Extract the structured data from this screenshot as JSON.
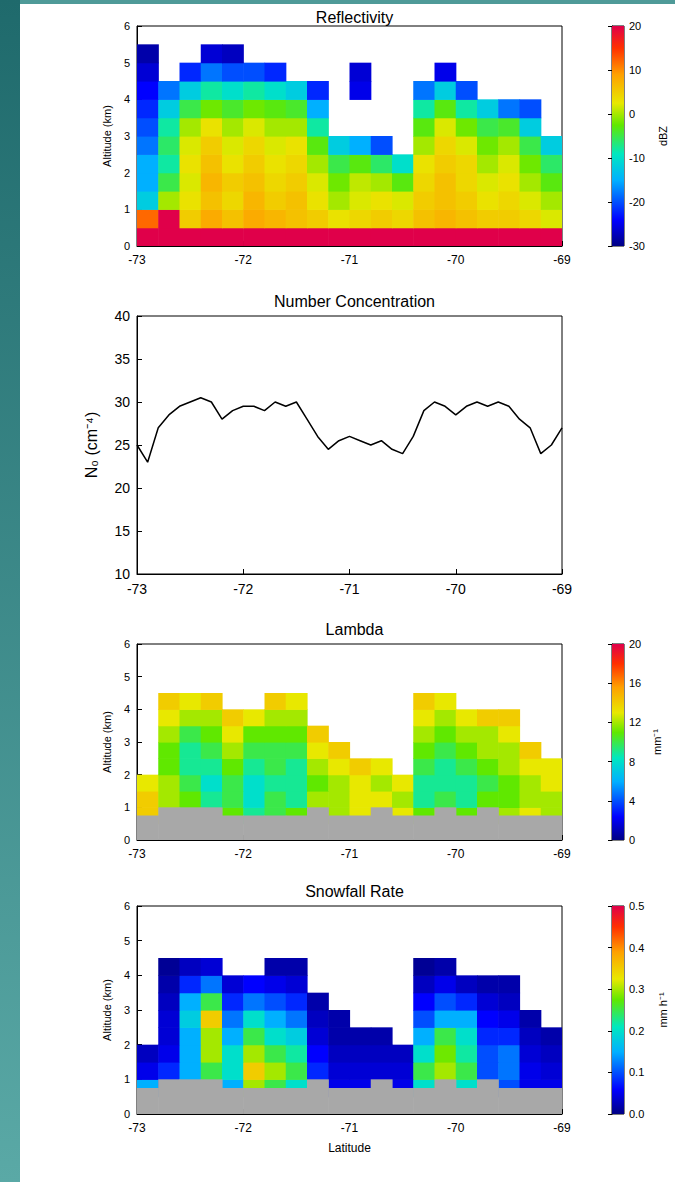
{
  "chart_data": [
    {
      "type": "heatmap",
      "title": "Reflectivity",
      "ylabel": "Altitude (km)",
      "xlim": [
        -73,
        -69
      ],
      "xticks": [
        -73,
        -72,
        -71,
        -70,
        -69
      ],
      "ylim": [
        0,
        6
      ],
      "yticks": [
        0,
        1,
        2,
        3,
        4,
        5,
        6
      ],
      "grid": false,
      "x_edges": [
        -73,
        -72.8,
        -72.6,
        -72.4,
        -72.2,
        -72,
        -71.8,
        -71.6,
        -71.4,
        -71.2,
        -71,
        -70.8,
        -70.6,
        -70.4,
        -70.2,
        -70,
        -69.8,
        -69.6,
        -69.4,
        -69.2,
        -69
      ],
      "y_edges": [
        0,
        0.5,
        1,
        1.5,
        2,
        2.5,
        3,
        3.5,
        4,
        4.5,
        5,
        5.5,
        6
      ],
      "z": [
        [
          20,
          20,
          20,
          20,
          20,
          20,
          20,
          20,
          20,
          20,
          20,
          20,
          20,
          20,
          20,
          20,
          20,
          20,
          20,
          20
        ],
        [
          12,
          20,
          5,
          8,
          6,
          8,
          7,
          6,
          5,
          3,
          4,
          5,
          4,
          6,
          7,
          6,
          5,
          5,
          4,
          2
        ],
        [
          -12,
          0,
          3,
          6,
          4,
          7,
          5,
          6,
          3,
          0,
          2,
          3,
          2,
          5,
          6,
          5,
          3,
          4,
          2,
          0
        ],
        [
          -15,
          -5,
          2,
          7,
          5,
          6,
          4,
          5,
          2,
          -2,
          1,
          0,
          -3,
          4,
          6,
          4,
          2,
          3,
          0,
          -3
        ],
        [
          -15,
          -8,
          3,
          6,
          3,
          5,
          3,
          4,
          0,
          -5,
          -3,
          -6,
          -10,
          3,
          5,
          4,
          0,
          2,
          -2,
          -6
        ],
        [
          -18,
          -6,
          2,
          5,
          2,
          4,
          2,
          3,
          -3,
          -12,
          -15,
          -20,
          null,
          0,
          4,
          2,
          -2,
          0,
          -5,
          -12
        ],
        [
          -20,
          -8,
          0,
          3,
          0,
          2,
          0,
          0,
          -8,
          null,
          null,
          null,
          null,
          -3,
          2,
          -2,
          -5,
          -4,
          -12,
          null
        ],
        [
          -22,
          -12,
          -5,
          -2,
          -4,
          -2,
          -3,
          -4,
          -15,
          null,
          null,
          null,
          null,
          -8,
          -3,
          -8,
          -12,
          -18,
          -20,
          null
        ],
        [
          -24,
          -18,
          -12,
          -8,
          -10,
          -8,
          -10,
          -12,
          -22,
          null,
          -25,
          null,
          null,
          -18,
          -12,
          -20,
          null,
          null,
          null,
          null
        ],
        [
          -26,
          null,
          -22,
          -18,
          -20,
          -20,
          -22,
          null,
          null,
          null,
          -26,
          null,
          null,
          null,
          -25,
          null,
          null,
          null,
          null,
          null
        ],
        [
          -28,
          null,
          null,
          -26,
          -27,
          null,
          null,
          null,
          null,
          null,
          null,
          null,
          null,
          null,
          null,
          null,
          null,
          null,
          null,
          null
        ],
        [
          null,
          null,
          null,
          null,
          null,
          null,
          null,
          null,
          null,
          null,
          null,
          null,
          null,
          null,
          null,
          null,
          null,
          null,
          null,
          null
        ]
      ],
      "colorbar": {
        "label": "dBZ",
        "lim": [
          -30,
          20
        ],
        "ticks": [
          -30,
          -20,
          -10,
          0,
          10,
          20
        ]
      }
    },
    {
      "type": "line",
      "title": "Number Concentration",
      "ylabel": "N₀ (cm⁻⁴)",
      "color": "#000000",
      "xlim": [
        -73,
        -69
      ],
      "xticks": [
        -73,
        -72,
        -71,
        -70,
        -69
      ],
      "ylim": [
        10,
        40
      ],
      "yticks": [
        10,
        15,
        20,
        25,
        30,
        35,
        40
      ],
      "grid": false,
      "x": [
        -73,
        -72.9,
        -72.8,
        -72.7,
        -72.6,
        -72.5,
        -72.4,
        -72.3,
        -72.2,
        -72.1,
        -72,
        -71.9,
        -71.8,
        -71.7,
        -71.6,
        -71.5,
        -71.4,
        -71.3,
        -71.2,
        -71.1,
        -71,
        -70.9,
        -70.8,
        -70.7,
        -70.6,
        -70.5,
        -70.4,
        -70.3,
        -70.2,
        -70.1,
        -70,
        -69.9,
        -69.8,
        -69.7,
        -69.6,
        -69.5,
        -69.4,
        -69.3,
        -69.2,
        -69.1,
        -69
      ],
      "values": [
        25,
        23,
        27,
        28.5,
        29.5,
        30,
        30.5,
        30,
        28,
        29,
        29.5,
        29.5,
        29,
        30,
        29.5,
        30,
        28,
        26,
        24.5,
        25.5,
        26,
        25.5,
        25,
        25.5,
        24.5,
        24,
        26,
        29,
        30,
        29.5,
        28.5,
        29.5,
        30,
        29.5,
        30,
        29.5,
        28,
        27,
        24,
        25,
        27
      ]
    },
    {
      "type": "heatmap",
      "title": "Lambda",
      "ylabel": "Altitude (km)",
      "xlim": [
        -73,
        -69
      ],
      "xticks": [
        -73,
        -72,
        -71,
        -70,
        -69
      ],
      "ylim": [
        0,
        6
      ],
      "yticks": [
        0,
        1,
        2,
        3,
        4,
        5,
        6
      ],
      "grid": false,
      "x_edges": [
        -73,
        -72.8,
        -72.6,
        -72.4,
        -72.2,
        -72,
        -71.8,
        -71.6,
        -71.4,
        -71.2,
        -71,
        -70.8,
        -70.6,
        -70.4,
        -70.2,
        -70,
        -69.8,
        -69.6,
        -69.4,
        -69.2,
        -69
      ],
      "y_edges": [
        0,
        0.5,
        1,
        1.5,
        2,
        2.5,
        3,
        3.5,
        4,
        4.5,
        5,
        5.5,
        6
      ],
      "z": [
        [
          null,
          null,
          null,
          null,
          null,
          null,
          null,
          null,
          null,
          null,
          null,
          null,
          null,
          null,
          null,
          null,
          null,
          null,
          null,
          null
        ],
        [
          14,
          13,
          12,
          10,
          11,
          9,
          10,
          11,
          13,
          12,
          13,
          14,
          13,
          11,
          12,
          11,
          12,
          12,
          13,
          12
        ],
        [
          14,
          12,
          11,
          9,
          10,
          8,
          10,
          9,
          12,
          12,
          13,
          13,
          12,
          9,
          10,
          9,
          11,
          11,
          12,
          12
        ],
        [
          13,
          12,
          10,
          8,
          10,
          8,
          9,
          9,
          11,
          12,
          13,
          12,
          13,
          9,
          9,
          9,
          10,
          11,
          12,
          13
        ],
        [
          null,
          11,
          9,
          9,
          11,
          9,
          10,
          9,
          12,
          13,
          14,
          13,
          null,
          10,
          9,
          10,
          11,
          12,
          13,
          13
        ],
        [
          null,
          11,
          9,
          10,
          12,
          10,
          10,
          10,
          13,
          14,
          null,
          null,
          null,
          11,
          10,
          11,
          12,
          12,
          14,
          null
        ],
        [
          null,
          12,
          10,
          11,
          13,
          11,
          11,
          11,
          14,
          null,
          null,
          null,
          null,
          12,
          11,
          12,
          12,
          13,
          null,
          null
        ],
        [
          null,
          13,
          12,
          12,
          14,
          13,
          12,
          12,
          null,
          null,
          null,
          null,
          null,
          13,
          12,
          13,
          14,
          14,
          null,
          null
        ],
        [
          null,
          14,
          13,
          14,
          null,
          null,
          14,
          13,
          null,
          null,
          null,
          null,
          null,
          14,
          13,
          null,
          null,
          null,
          null,
          null
        ],
        [
          null,
          null,
          null,
          null,
          null,
          null,
          null,
          null,
          null,
          null,
          null,
          null,
          null,
          null,
          null,
          null,
          null,
          null,
          null,
          null
        ],
        [
          null,
          null,
          null,
          null,
          null,
          null,
          null,
          null,
          null,
          null,
          null,
          null,
          null,
          null,
          null,
          null,
          null,
          null,
          null,
          null
        ],
        [
          null,
          null,
          null,
          null,
          null,
          null,
          null,
          null,
          null,
          null,
          null,
          null,
          null,
          null,
          null,
          null,
          null,
          null,
          null,
          null
        ]
      ],
      "mask_top": [
        0.75,
        1,
        1,
        1,
        0.75,
        0.75,
        0.75,
        0.75,
        1,
        0.75,
        0.75,
        1,
        0.75,
        0.75,
        1,
        0.75,
        1,
        0.75,
        0.75,
        0.75
      ],
      "colorbar": {
        "label": "mm⁻¹",
        "lim": [
          0,
          20
        ],
        "ticks": [
          0,
          4,
          8,
          12,
          16,
          20
        ]
      }
    },
    {
      "type": "heatmap",
      "title": "Snowfall Rate",
      "ylabel": "Altitude (km)",
      "xlabel": "Latitude",
      "xlim": [
        -73,
        -69
      ],
      "xticks": [
        -73,
        -72,
        -71,
        -70,
        -69
      ],
      "ylim": [
        0,
        6
      ],
      "yticks": [
        0,
        1,
        2,
        3,
        4,
        5,
        6
      ],
      "grid": false,
      "x_edges": [
        -73,
        -72.8,
        -72.6,
        -72.4,
        -72.2,
        -72,
        -71.8,
        -71.6,
        -71.4,
        -71.2,
        -71,
        -70.8,
        -70.6,
        -70.4,
        -70.2,
        -70,
        -69.8,
        -69.6,
        -69.4,
        -69.2,
        -69
      ],
      "y_edges": [
        0,
        0.5,
        1,
        1.5,
        2,
        2.5,
        3,
        3.5,
        4,
        4.5,
        5,
        5.5,
        6
      ],
      "z": [
        [
          null,
          null,
          null,
          null,
          null,
          null,
          null,
          null,
          null,
          null,
          null,
          null,
          null,
          null,
          null,
          null,
          null,
          null,
          null,
          null
        ],
        [
          0.15,
          0.1,
          0.12,
          0.2,
          0.15,
          0.3,
          0.25,
          0.2,
          0.1,
          0.05,
          0.05,
          0.05,
          0.05,
          0.2,
          0.25,
          0.2,
          0.1,
          0.1,
          0.05,
          0.05
        ],
        [
          0.05,
          0.08,
          0.15,
          0.25,
          0.2,
          0.35,
          0.3,
          0.25,
          0.08,
          0.04,
          0.04,
          0.04,
          0.04,
          0.25,
          0.3,
          0.25,
          0.1,
          0.12,
          0.05,
          0.04
        ],
        [
          0.03,
          0.05,
          0.15,
          0.3,
          0.2,
          0.3,
          0.25,
          0.22,
          0.06,
          0.03,
          0.03,
          0.03,
          0.03,
          0.2,
          0.28,
          0.22,
          0.1,
          0.12,
          0.04,
          0.03
        ],
        [
          null,
          0.04,
          0.15,
          0.3,
          0.15,
          0.25,
          0.2,
          0.18,
          0.04,
          0.02,
          0.02,
          0.02,
          null,
          0.15,
          0.25,
          0.2,
          0.08,
          0.08,
          0.03,
          0.02
        ],
        [
          null,
          0.04,
          0.18,
          0.35,
          0.12,
          0.2,
          0.15,
          0.12,
          0.03,
          0.02,
          null,
          null,
          null,
          0.1,
          0.15,
          0.15,
          0.06,
          0.05,
          0.02,
          null
        ],
        [
          null,
          0.03,
          0.15,
          0.25,
          0.08,
          0.12,
          0.1,
          0.08,
          0.02,
          null,
          null,
          null,
          null,
          0.06,
          0.1,
          0.08,
          0.04,
          0.03,
          null,
          null
        ],
        [
          null,
          0.02,
          0.08,
          0.12,
          0.04,
          0.06,
          0.05,
          0.04,
          null,
          null,
          null,
          null,
          null,
          0.03,
          0.05,
          0.03,
          0.02,
          0.02,
          null,
          null
        ],
        [
          null,
          0.01,
          0.03,
          0.04,
          null,
          null,
          0.02,
          0.02,
          null,
          null,
          null,
          null,
          null,
          0.01,
          0.02,
          null,
          null,
          null,
          null,
          null
        ],
        [
          null,
          null,
          null,
          null,
          null,
          null,
          null,
          null,
          null,
          null,
          null,
          null,
          null,
          null,
          null,
          null,
          null,
          null,
          null,
          null
        ],
        [
          null,
          null,
          null,
          null,
          null,
          null,
          null,
          null,
          null,
          null,
          null,
          null,
          null,
          null,
          null,
          null,
          null,
          null,
          null,
          null
        ],
        [
          null,
          null,
          null,
          null,
          null,
          null,
          null,
          null,
          null,
          null,
          null,
          null,
          null,
          null,
          null,
          null,
          null,
          null,
          null,
          null
        ]
      ],
      "mask_top": [
        0.75,
        1,
        1,
        1,
        0.75,
        0.75,
        0.75,
        0.75,
        1,
        0.75,
        0.75,
        1,
        0.75,
        0.75,
        1,
        0.75,
        1,
        0.75,
        0.75,
        0.75
      ],
      "colorbar": {
        "label": "mm h⁻¹",
        "lim": [
          0,
          0.5
        ],
        "ticks": [
          {
            "value": 0,
            "label": "0.0"
          },
          0.1,
          0.2,
          0.3,
          0.4,
          0.5
        ]
      }
    }
  ]
}
